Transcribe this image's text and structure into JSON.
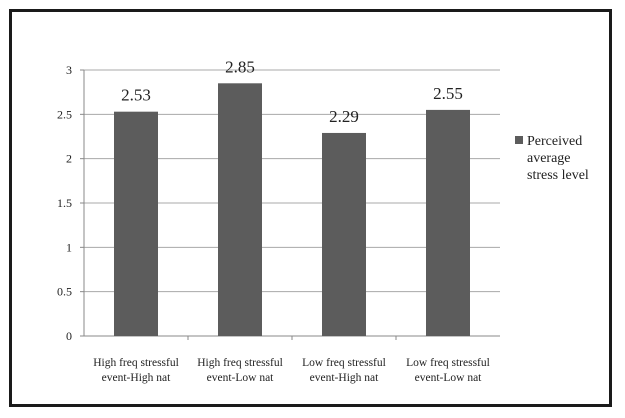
{
  "chart_data": {
    "type": "bar",
    "categories": [
      [
        "High freq stressful",
        "event-High nat"
      ],
      [
        "High freq stressful",
        "event-Low nat"
      ],
      [
        "Low freq stressful",
        "event-High nat"
      ],
      [
        "Low freq stressful",
        "event-Low nat"
      ]
    ],
    "series": [
      {
        "name": "Perceived average stress level",
        "values": [
          2.53,
          2.85,
          2.29,
          2.55
        ],
        "color": "#5c5c5c"
      }
    ],
    "data_labels": [
      "2.53",
      "2.85",
      "2.29",
      "2.55"
    ],
    "yticks": [
      "0",
      "0.5",
      "1",
      "1.5",
      "2",
      "2.5",
      "3"
    ],
    "ylim": [
      0,
      3
    ],
    "title": "",
    "xlabel": "",
    "ylabel": "",
    "grid": true,
    "legend": {
      "position": "right",
      "lines": [
        "Perceived",
        "average",
        "stress level"
      ]
    }
  }
}
